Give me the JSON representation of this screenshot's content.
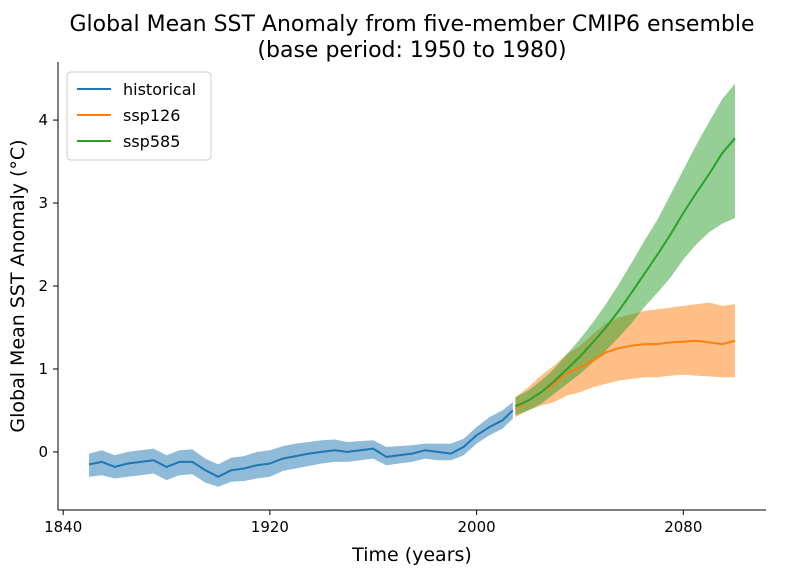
{
  "chart_data": {
    "type": "line",
    "title": "Global Mean SST Anomaly from five-member CMIP6 ensemble",
    "subtitle": "(base period: 1950 to 1980)",
    "xlabel": "Time (years)",
    "ylabel": "Global Mean SST Anomaly (°C)",
    "xlim": [
      1838,
      2112
    ],
    "ylim": [
      -0.7,
      4.7
    ],
    "xticks": [
      1840,
      1920,
      2000,
      2080
    ],
    "yticks": [
      0,
      1,
      2,
      3,
      4
    ],
    "grid": false,
    "legend_position": "top-left",
    "colors": {
      "historical": "#1f77b4",
      "ssp126": "#ff7f0e",
      "ssp585": "#2ca02c"
    },
    "band_opacity": 0.5,
    "series": [
      {
        "name": "historical",
        "x": [
          1850,
          1855,
          1860,
          1865,
          1870,
          1875,
          1880,
          1885,
          1890,
          1895,
          1900,
          1905,
          1910,
          1915,
          1920,
          1925,
          1930,
          1935,
          1940,
          1945,
          1950,
          1955,
          1960,
          1965,
          1970,
          1975,
          1980,
          1985,
          1990,
          1995,
          2000,
          2005,
          2010,
          2014
        ],
        "mean": [
          -0.15,
          -0.12,
          -0.18,
          -0.14,
          -0.12,
          -0.1,
          -0.18,
          -0.12,
          -0.12,
          -0.22,
          -0.3,
          -0.22,
          -0.2,
          -0.16,
          -0.14,
          -0.08,
          -0.05,
          -0.02,
          0.0,
          0.02,
          0.0,
          0.02,
          0.04,
          -0.06,
          -0.04,
          -0.02,
          0.02,
          0.0,
          -0.02,
          0.06,
          0.2,
          0.3,
          0.38,
          0.5
        ],
        "upper": [
          -0.02,
          0.02,
          -0.04,
          0.0,
          0.02,
          0.04,
          -0.04,
          0.02,
          0.03,
          -0.08,
          -0.15,
          -0.07,
          -0.05,
          0.0,
          0.02,
          0.07,
          0.1,
          0.12,
          0.14,
          0.15,
          0.12,
          0.13,
          0.14,
          0.06,
          0.07,
          0.08,
          0.1,
          0.1,
          0.1,
          0.16,
          0.3,
          0.42,
          0.5,
          0.6
        ],
        "lower": [
          -0.3,
          -0.28,
          -0.32,
          -0.3,
          -0.28,
          -0.26,
          -0.34,
          -0.28,
          -0.27,
          -0.37,
          -0.42,
          -0.36,
          -0.35,
          -0.32,
          -0.3,
          -0.23,
          -0.2,
          -0.17,
          -0.14,
          -0.12,
          -0.12,
          -0.1,
          -0.08,
          -0.16,
          -0.14,
          -0.12,
          -0.08,
          -0.1,
          -0.1,
          -0.04,
          0.1,
          0.2,
          0.28,
          0.4
        ]
      },
      {
        "name": "ssp126",
        "x": [
          2015,
          2020,
          2025,
          2030,
          2035,
          2040,
          2045,
          2050,
          2055,
          2060,
          2065,
          2070,
          2075,
          2080,
          2085,
          2090,
          2095,
          2100
        ],
        "mean": [
          0.52,
          0.62,
          0.72,
          0.82,
          0.95,
          1.02,
          1.1,
          1.2,
          1.25,
          1.28,
          1.3,
          1.3,
          1.32,
          1.33,
          1.34,
          1.32,
          1.3,
          1.34
        ],
        "upper": [
          0.66,
          0.78,
          0.92,
          1.04,
          1.18,
          1.28,
          1.42,
          1.55,
          1.62,
          1.66,
          1.7,
          1.72,
          1.74,
          1.76,
          1.78,
          1.8,
          1.76,
          1.78
        ],
        "lower": [
          0.42,
          0.5,
          0.56,
          0.6,
          0.68,
          0.72,
          0.78,
          0.82,
          0.86,
          0.88,
          0.9,
          0.9,
          0.92,
          0.93,
          0.92,
          0.91,
          0.9,
          0.9
        ]
      },
      {
        "name": "ssp585",
        "x": [
          2015,
          2020,
          2025,
          2030,
          2035,
          2040,
          2045,
          2050,
          2055,
          2060,
          2065,
          2070,
          2075,
          2080,
          2085,
          2090,
          2095,
          2100
        ],
        "mean": [
          0.55,
          0.62,
          0.72,
          0.85,
          1.0,
          1.15,
          1.32,
          1.5,
          1.7,
          1.92,
          2.15,
          2.38,
          2.62,
          2.88,
          3.12,
          3.35,
          3.6,
          3.78
        ],
        "upper": [
          0.66,
          0.74,
          0.86,
          1.0,
          1.18,
          1.36,
          1.56,
          1.78,
          2.02,
          2.28,
          2.55,
          2.8,
          3.1,
          3.4,
          3.7,
          3.98,
          4.25,
          4.44
        ],
        "lower": [
          0.44,
          0.5,
          0.58,
          0.7,
          0.82,
          0.94,
          1.08,
          1.22,
          1.38,
          1.55,
          1.75,
          1.92,
          2.1,
          2.32,
          2.5,
          2.65,
          2.75,
          2.82
        ]
      }
    ]
  }
}
